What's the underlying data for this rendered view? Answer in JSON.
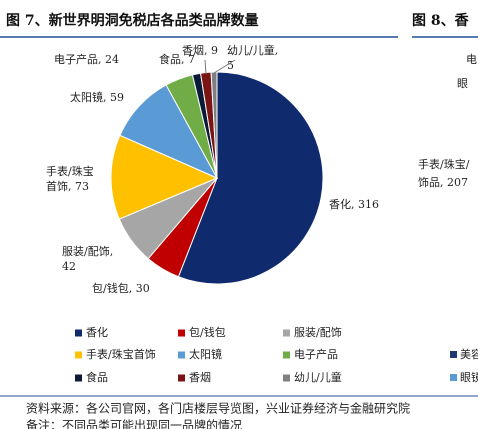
{
  "chart_data": {
    "type": "pie",
    "title": "图 7、新世界明洞免税店各品类品牌数量",
    "categories": [
      "香化",
      "包/钱包",
      "服装/配饰",
      "手表/珠宝首饰",
      "太阳镜",
      "电子产品",
      "食品",
      "香烟",
      "幼儿/儿童"
    ],
    "values": [
      316,
      30,
      42,
      73,
      59,
      24,
      7,
      9,
      5
    ],
    "value_labels": [
      "香化, 316",
      "包/钱包, 30",
      "服装/配饰,\n42",
      "手表/珠宝\n首饰, 73",
      "太阳镜, 59",
      "电子产品, 24",
      "食品, 7",
      "香烟, 9",
      "幼儿/儿童,\n5"
    ],
    "colors": [
      "#0f2b6e",
      "#c00000",
      "#a6a6a6",
      "#ffc000",
      "#5b9bd5",
      "#70ad47",
      "#0c1a3a",
      "#7b1515",
      "#808080"
    ],
    "legend": "bottom"
  },
  "source": "资料来源：各公司官网，各门店楼层导览图，兴业证券经济与金融研究院",
  "note": "备注：不同品类可能出现同一品牌的情况",
  "clipped_panel": {
    "title": "图 8、香",
    "labels": [
      "电",
      "眼",
      "手表/珠宝/",
      "饰品, 207"
    ],
    "legend": [
      "美容",
      "眼镜"
    ]
  }
}
